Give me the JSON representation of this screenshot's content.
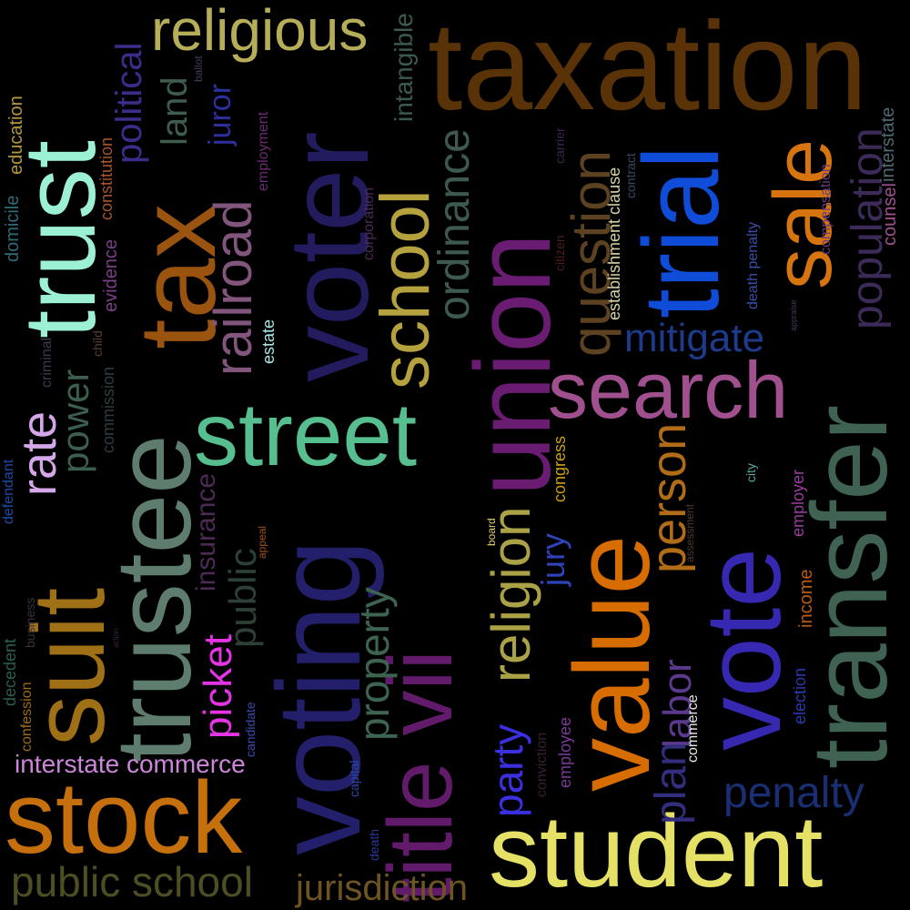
{
  "background": "#000000",
  "words": [
    {
      "text": "taxation",
      "color": "#5a3208"
    },
    {
      "text": "tax",
      "color": "#9a5410"
    },
    {
      "text": "trust",
      "color": "#9cf0d4"
    },
    {
      "text": "trustee",
      "color": "#5f7d6e"
    },
    {
      "text": "voter",
      "color": "#221b5e"
    },
    {
      "text": "voting",
      "color": "#231f6b"
    },
    {
      "text": "street",
      "color": "#57bf8f"
    },
    {
      "text": "union",
      "color": "#6a1c72"
    },
    {
      "text": "title vii",
      "color": "#621b6a"
    },
    {
      "text": "value",
      "color": "#d76d00"
    },
    {
      "text": "trial",
      "color": "#0f4dd9"
    },
    {
      "text": "sale",
      "color": "#d67410"
    },
    {
      "text": "search",
      "color": "#a0508e"
    },
    {
      "text": "transfer",
      "color": "#3f6252"
    },
    {
      "text": "vote",
      "color": "#3628b0"
    },
    {
      "text": "student",
      "color": "#e5e166"
    },
    {
      "text": "stock",
      "color": "#c6700d"
    },
    {
      "text": "suit",
      "color": "#a07017"
    },
    {
      "text": "religious",
      "color": "#b6ad59"
    },
    {
      "text": "school",
      "color": "#b5a23f"
    },
    {
      "text": "railroad",
      "color": "#81557c"
    },
    {
      "text": "religion",
      "color": "#aba247"
    },
    {
      "text": "ordinance",
      "color": "#3e5a50"
    },
    {
      "text": "question",
      "color": "#5c4220"
    },
    {
      "text": "population",
      "color": "#3c2b59"
    },
    {
      "text": "mitigate",
      "color": "#1e3a8a"
    },
    {
      "text": "person",
      "color": "#b06c17"
    },
    {
      "text": "penalty",
      "color": "#1a2f72"
    },
    {
      "text": "party",
      "color": "#3b2fe0"
    },
    {
      "text": "labor",
      "color": "#5b3a8e"
    },
    {
      "text": "plan",
      "color": "#332d7e"
    },
    {
      "text": "public school",
      "color": "#4e4e24"
    },
    {
      "text": "jurisdiction",
      "color": "#6e5422"
    },
    {
      "text": "property",
      "color": "#3d6450"
    },
    {
      "text": "rate",
      "color": "#d4a7e9"
    },
    {
      "text": "power",
      "color": "#3b5e4d"
    },
    {
      "text": "political",
      "color": "#3c2c8a"
    },
    {
      "text": "land",
      "color": "#3f5c4e"
    },
    {
      "text": "juror",
      "color": "#2d2f9c"
    },
    {
      "text": "picket",
      "color": "#e434e4"
    },
    {
      "text": "public",
      "color": "#2d4036"
    },
    {
      "text": "insurance",
      "color": "#4b2a54"
    },
    {
      "text": "jury",
      "color": "#2e43b8"
    },
    {
      "text": "intangible",
      "color": "#3b5a4c"
    },
    {
      "text": "interstate commerce",
      "color": "#cc86da"
    },
    {
      "text": "education",
      "color": "#b29a3c"
    },
    {
      "text": "constitution",
      "color": "#a8542c"
    },
    {
      "text": "domicile",
      "color": "#2f6a76"
    },
    {
      "text": "evidence",
      "color": "#7a4086"
    },
    {
      "text": "child",
      "color": "#5a3c2e"
    },
    {
      "text": "commission",
      "color": "#2f3a40"
    },
    {
      "text": "criminal",
      "color": "#3a3d50"
    },
    {
      "text": "defendant",
      "color": "#1e4aa6"
    },
    {
      "text": "business",
      "color": "#3a3040"
    },
    {
      "text": "decedent",
      "color": "#2b5e52"
    },
    {
      "text": "confession",
      "color": "#9c6c16"
    },
    {
      "text": "employment",
      "color": "#6a2c70"
    },
    {
      "text": "ballot",
      "color": "#4a3a5a"
    },
    {
      "text": "corporation",
      "color": "#4e2a56"
    },
    {
      "text": "estate",
      "color": "#a6e6e6"
    },
    {
      "text": "carrier",
      "color": "#3b2650"
    },
    {
      "text": "citizen",
      "color": "#4e1e1e"
    },
    {
      "text": "establishment clause",
      "color": "#d6d2a2"
    },
    {
      "text": "contract",
      "color": "#3a4a60"
    },
    {
      "text": "death penalty",
      "color": "#3b4fa6"
    },
    {
      "text": "compensation",
      "color": "#6b3a78"
    },
    {
      "text": "counsel",
      "color": "#a0508e"
    },
    {
      "text": "interstate",
      "color": "#4e6a72"
    },
    {
      "text": "appraise",
      "color": "#4a3a5a"
    },
    {
      "text": "congress",
      "color": "#c8a010"
    },
    {
      "text": "board",
      "color": "#e0d070"
    },
    {
      "text": "appeal",
      "color": "#a0501a"
    },
    {
      "text": "action",
      "color": "#3a2640"
    },
    {
      "text": "candidate",
      "color": "#3a4ab0"
    },
    {
      "text": "capital",
      "color": "#2a4aa8"
    },
    {
      "text": "death",
      "color": "#2a3a9a"
    },
    {
      "text": "conviction",
      "color": "#3a1e30"
    },
    {
      "text": "employee",
      "color": "#7a3a9a"
    },
    {
      "text": "commerce",
      "color": "#e6e6e6"
    },
    {
      "text": "assessment",
      "color": "#4a3a30"
    },
    {
      "text": "city",
      "color": "#60a8a0"
    },
    {
      "text": "employer",
      "color": "#9a3aa0"
    },
    {
      "text": "income",
      "color": "#b85c10"
    },
    {
      "text": "election",
      "color": "#2a3ab0"
    }
  ]
}
